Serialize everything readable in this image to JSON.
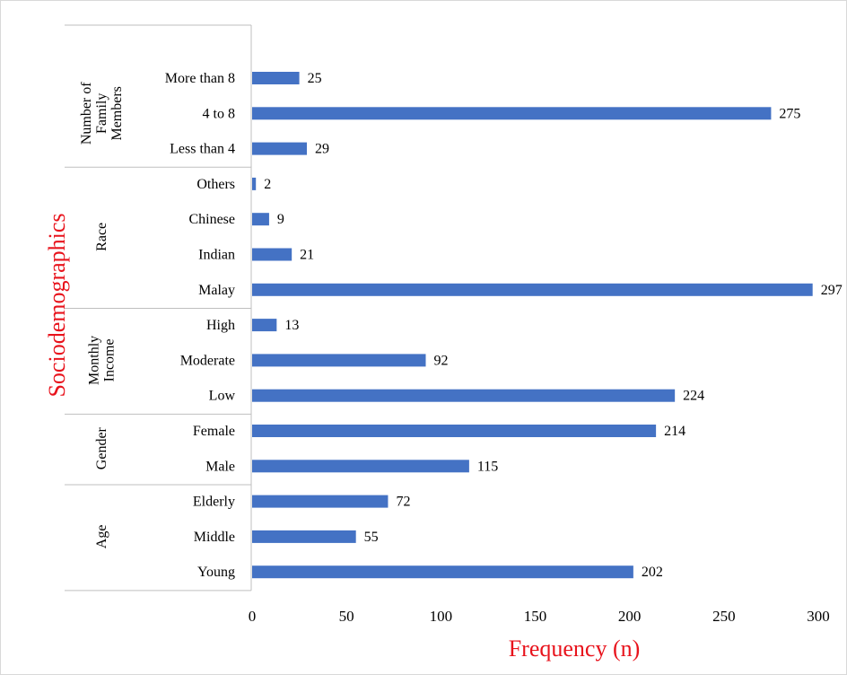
{
  "chart_data": {
    "type": "bar",
    "orientation": "horizontal",
    "xlabel": "Frequency (n)",
    "ylabel": "Sociodemographics",
    "xlim": [
      0,
      300
    ],
    "xticks": [
      "0",
      "50",
      "100",
      "150",
      "200",
      "250",
      "300"
    ],
    "bar_color": "#4472c4",
    "title_color": "#e8131c",
    "grid": false,
    "groups": [
      {
        "name": "Number of Family Members",
        "categories": [
          {
            "label": "More than 8",
            "value": 25
          },
          {
            "label": "4 to 8",
            "value": 275
          },
          {
            "label": "Less than 4",
            "value": 29
          }
        ]
      },
      {
        "name": "Race",
        "categories": [
          {
            "label": "Others",
            "value": 2
          },
          {
            "label": "Chinese",
            "value": 9
          },
          {
            "label": "Indian",
            "value": 21
          },
          {
            "label": "Malay",
            "value": 297
          }
        ]
      },
      {
        "name": "Monthly Income",
        "categories": [
          {
            "label": "High",
            "value": 13
          },
          {
            "label": "Moderate",
            "value": 92
          },
          {
            "label": "Low",
            "value": 224
          }
        ]
      },
      {
        "name": "Gender",
        "categories": [
          {
            "label": "Female",
            "value": 214
          },
          {
            "label": "Male",
            "value": 115
          }
        ]
      },
      {
        "name": "Age",
        "categories": [
          {
            "label": "Elderly",
            "value": 72
          },
          {
            "label": "Middle",
            "value": 55
          },
          {
            "label": "Young",
            "value": 202
          }
        ]
      }
    ]
  }
}
